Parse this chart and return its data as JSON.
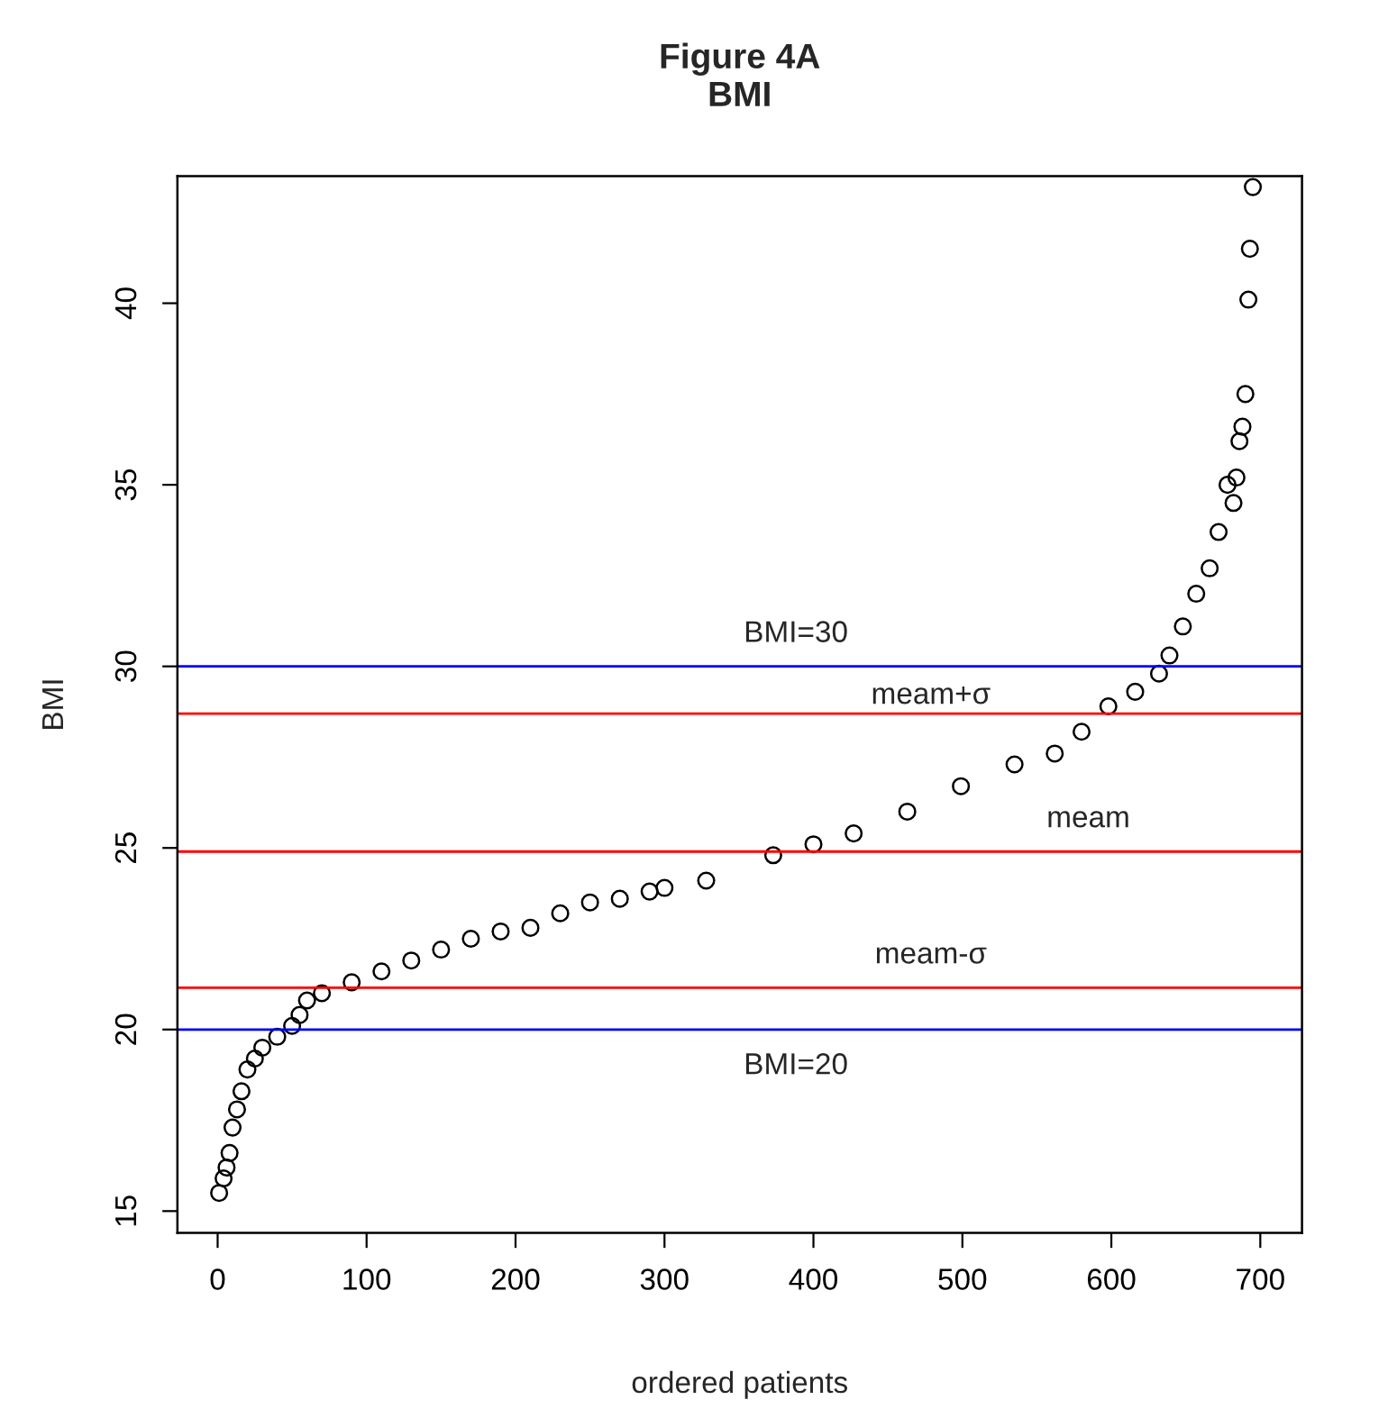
{
  "chart_data": {
    "type": "scatter",
    "title": "Figure 4A\nBMI",
    "xlabel": "ordered patients",
    "ylabel": "BMI",
    "series": [
      {
        "color": "#000000",
        "x": [
          1,
          4,
          6,
          8,
          10,
          13,
          16,
          20,
          25,
          30,
          40,
          50,
          55,
          60,
          70,
          90,
          110,
          130,
          150,
          170,
          190,
          210,
          230,
          250,
          270,
          290,
          300,
          328,
          373,
          400,
          427,
          463,
          499,
          535,
          562,
          580,
          598,
          616,
          632,
          639,
          648,
          657,
          666,
          672,
          678,
          682,
          684,
          686,
          688,
          690,
          692,
          693,
          695
        ],
        "values": [
          15.5,
          15.9,
          16.2,
          16.6,
          17.3,
          17.8,
          18.3,
          18.9,
          19.2,
          19.5,
          19.8,
          20.1,
          20.4,
          20.8,
          21.0,
          21.3,
          21.6,
          21.9,
          22.2,
          22.5,
          22.7,
          22.8,
          23.2,
          23.5,
          23.6,
          23.8,
          23.9,
          24.1,
          24.8,
          25.1,
          25.4,
          26.0,
          26.7,
          27.3,
          27.6,
          28.2,
          28.9,
          29.3,
          29.8,
          30.3,
          31.1,
          32.0,
          32.7,
          33.7,
          35.0,
          34.5,
          35.2,
          36.2,
          36.6,
          37.5,
          40.1,
          41.5,
          43.2
        ]
      }
    ],
    "marker": "circle",
    "grid": false,
    "legend": false,
    "xlim": [
      -27,
      728
    ],
    "ylim": [
      14.4,
      43.5
    ],
    "xticks": [
      0,
      100,
      200,
      300,
      400,
      500,
      600,
      700
    ],
    "yticks": [
      15,
      20,
      25,
      30,
      35,
      40
    ],
    "ref_lines": [
      {
        "axis": "y",
        "value": 30,
        "label": "BMI=30",
        "color": "#0000ff"
      },
      {
        "axis": "y",
        "value": 28.7,
        "label": "meam+σ",
        "color": "#ff0000"
      },
      {
        "axis": "y",
        "value": 24.9,
        "label": "meam",
        "color": "#ff0000"
      },
      {
        "axis": "y",
        "value": 21.15,
        "label": "meam-σ",
        "color": "#ff0000"
      },
      {
        "axis": "y",
        "value": 20,
        "label": "BMI=20",
        "color": "#0000ff"
      }
    ]
  }
}
